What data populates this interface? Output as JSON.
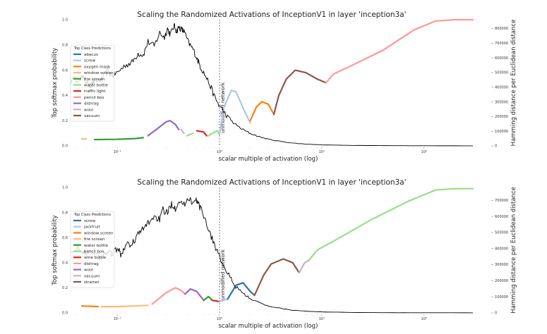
{
  "chart_data": [
    {
      "type": "line",
      "title": "Scaling the Randomized Activations of InceptionV1 in layer 'inception3a'",
      "xlabel": "scalar multiple of activation (log)",
      "ylabel": "Top softmax probability",
      "y2label": "Hamming distance per Euclidean distance",
      "xscale": "log",
      "xlim": [
        0.035,
        300
      ],
      "ylim": [
        0,
        1.0
      ],
      "y2lim": [
        0,
        860000
      ],
      "xticks": [
        {
          "v": 0.1,
          "label": "10⁻¹"
        },
        {
          "v": 1,
          "label": "10⁰"
        },
        {
          "v": 10,
          "label": "10¹"
        },
        {
          "v": 100,
          "label": "10²"
        }
      ],
      "yticks": [
        {
          "v": 0,
          "label": "0.0"
        },
        {
          "v": 0.2,
          "label": "0.2"
        },
        {
          "v": 0.4,
          "label": "0.4"
        },
        {
          "v": 0.6,
          "label": "0.6"
        },
        {
          "v": 0.8,
          "label": "0.8"
        },
        {
          "v": 1.0,
          "label": "1.0"
        }
      ],
      "y2ticks": [
        {
          "v": 0,
          "label": "0"
        },
        {
          "v": 100000,
          "label": "100000"
        },
        {
          "v": 200000,
          "label": "200000"
        },
        {
          "v": 300000,
          "label": "300000"
        },
        {
          "v": 400000,
          "label": "400000"
        },
        {
          "v": 500000,
          "label": "500000"
        },
        {
          "v": 600000,
          "label": "600000"
        },
        {
          "v": 700000,
          "label": "700000"
        },
        {
          "v": 800000,
          "label": "800000"
        }
      ],
      "vline": {
        "x": 1.0,
        "label": "unmodified network"
      },
      "legend": {
        "title": "Top Class Predictions",
        "placement": "left"
      },
      "classes": [
        {
          "name": "abacus",
          "color": "#1f77b4"
        },
        {
          "name": "screw",
          "color": "#aec7e8"
        },
        {
          "name": "oxygen mask",
          "color": "#ff7f0e"
        },
        {
          "name": "window screen",
          "color": "#ffbb78"
        },
        {
          "name": "fire screen",
          "color": "#2ca02c"
        },
        {
          "name": "water bottle",
          "color": "#98df8a"
        },
        {
          "name": "traffic light",
          "color": "#d62728"
        },
        {
          "name": "pencil box",
          "color": "#ff9896"
        },
        {
          "name": "dishrag",
          "color": "#9467bd"
        },
        {
          "name": "wool",
          "color": "#c5b0d5"
        },
        {
          "name": "vacuum",
          "color": "#8c564b"
        }
      ],
      "softmax_segments": [
        {
          "cls": 3,
          "points": [
            [
              0.045,
              0.055
            ],
            [
              0.05,
              0.054
            ]
          ]
        },
        {
          "cls": 4,
          "points": [
            [
              0.06,
              0.05
            ],
            [
              0.1,
              0.052
            ],
            [
              0.15,
              0.058
            ],
            [
              0.18,
              0.065
            ]
          ]
        },
        {
          "cls": 8,
          "points": [
            [
              0.2,
              0.08
            ],
            [
              0.25,
              0.14
            ],
            [
              0.3,
              0.19
            ],
            [
              0.33,
              0.2
            ],
            [
              0.37,
              0.17
            ],
            [
              0.4,
              0.13
            ]
          ]
        },
        {
          "cls": 9,
          "points": [
            [
              0.42,
              0.13
            ],
            [
              0.45,
              0.1
            ]
          ]
        },
        {
          "cls": 5,
          "points": [
            [
              0.48,
              0.08
            ],
            [
              0.55,
              0.1
            ]
          ]
        },
        {
          "cls": 6,
          "points": [
            [
              0.6,
              0.12
            ],
            [
              0.7,
              0.11
            ],
            [
              0.75,
              0.08
            ]
          ]
        },
        {
          "cls": 5,
          "points": [
            [
              0.78,
              0.08
            ],
            [
              0.85,
              0.1
            ],
            [
              0.95,
              0.12
            ],
            [
              1.0,
              0.09
            ]
          ]
        },
        {
          "cls": 1,
          "points": [
            [
              1.0,
              0.09
            ],
            [
              1.1,
              0.3
            ],
            [
              1.3,
              0.44
            ],
            [
              1.45,
              0.43
            ],
            [
              1.7,
              0.3
            ],
            [
              2.0,
              0.18
            ]
          ]
        },
        {
          "cls": 2,
          "points": [
            [
              2.0,
              0.2
            ],
            [
              2.3,
              0.31
            ],
            [
              2.6,
              0.35
            ],
            [
              3.0,
              0.33
            ],
            [
              3.4,
              0.25
            ]
          ]
        },
        {
          "cls": 10,
          "points": [
            [
              3.4,
              0.25
            ],
            [
              3.8,
              0.4
            ],
            [
              4.5,
              0.53
            ],
            [
              5.5,
              0.6
            ],
            [
              7.0,
              0.58
            ],
            [
              9.0,
              0.53
            ],
            [
              11.0,
              0.5
            ]
          ]
        },
        {
          "cls": 7,
          "points": [
            [
              11.0,
              0.5
            ],
            [
              13.0,
              0.57
            ],
            [
              20.0,
              0.64
            ],
            [
              40.0,
              0.76
            ],
            [
              80.0,
              0.92
            ],
            [
              130.0,
              0.99
            ],
            [
              200.0,
              1.0
            ],
            [
              300.0,
              1.0
            ]
          ]
        }
      ],
      "hamming_points": [
        [
          0.035,
          440000
        ],
        [
          0.045,
          470000
        ],
        [
          0.05,
          435000
        ],
        [
          0.055,
          410000
        ],
        [
          0.06,
          440000
        ],
        [
          0.07,
          450000
        ],
        [
          0.08,
          510000
        ],
        [
          0.09,
          480000
        ],
        [
          0.1,
          500000
        ],
        [
          0.12,
          550000
        ],
        [
          0.14,
          570000
        ],
        [
          0.16,
          630000
        ],
        [
          0.18,
          620000
        ],
        [
          0.2,
          710000
        ],
        [
          0.23,
          680000
        ],
        [
          0.26,
          770000
        ],
        [
          0.29,
          740000
        ],
        [
          0.31,
          800000
        ],
        [
          0.33,
          760000
        ],
        [
          0.36,
          820000
        ],
        [
          0.38,
          780000
        ],
        [
          0.4,
          810000
        ],
        [
          0.43,
          790000
        ],
        [
          0.45,
          780000
        ],
        [
          0.5,
          700000
        ],
        [
          0.55,
          660000
        ],
        [
          0.6,
          600000
        ],
        [
          0.65,
          540000
        ],
        [
          0.7,
          500000
        ],
        [
          0.8,
          420000
        ],
        [
          0.9,
          330000
        ],
        [
          1.0,
          270000
        ],
        [
          1.2,
          200000
        ],
        [
          1.4,
          150000
        ],
        [
          1.7,
          110000
        ],
        [
          2.0,
          85000
        ],
        [
          2.5,
          60000
        ],
        [
          3.0,
          45000
        ],
        [
          4.0,
          30000
        ],
        [
          5.0,
          20000
        ],
        [
          7.0,
          12000
        ],
        [
          10.0,
          7000
        ],
        [
          20.0,
          3000
        ],
        [
          50.0,
          1500
        ],
        [
          100.0,
          800
        ],
        [
          300.0,
          500
        ]
      ]
    },
    {
      "type": "line",
      "title": "Scaling the Randomized Activations of InceptionV1 in layer 'inception3a'",
      "xlabel": "scalar multiple of activation (log)",
      "ylabel": "Top softmax probability",
      "y2label": "Hamming distance per Euclidean distance",
      "xscale": "log",
      "xlim": [
        0.035,
        300
      ],
      "ylim": [
        0,
        1.0
      ],
      "y2lim": [
        0,
        780000
      ],
      "xticks": [
        {
          "v": 0.1,
          "label": "10⁻¹"
        },
        {
          "v": 1,
          "label": "10⁰"
        },
        {
          "v": 10,
          "label": "10¹"
        },
        {
          "v": 100,
          "label": "10²"
        }
      ],
      "yticks": [
        {
          "v": 0,
          "label": "0.0"
        },
        {
          "v": 0.2,
          "label": "0.2"
        },
        {
          "v": 0.4,
          "label": "0.4"
        },
        {
          "v": 0.6,
          "label": "0.6"
        },
        {
          "v": 0.8,
          "label": "0.8"
        },
        {
          "v": 1.0,
          "label": "1.0"
        }
      ],
      "y2ticks": [
        {
          "v": 0,
          "label": "0"
        },
        {
          "v": 100000,
          "label": "100000"
        },
        {
          "v": 200000,
          "label": "200000"
        },
        {
          "v": 300000,
          "label": "300000"
        },
        {
          "v": 400000,
          "label": "400000"
        },
        {
          "v": 500000,
          "label": "500000"
        },
        {
          "v": 600000,
          "label": "600000"
        },
        {
          "v": 700000,
          "label": "700000"
        }
      ],
      "vline": {
        "x": 1.0,
        "label": "unmodified network"
      },
      "legend": {
        "title": "Top Class Predictions",
        "placement": "left"
      },
      "classes": [
        {
          "name": "screw",
          "color": "#1f77b4"
        },
        {
          "name": "jackfruit",
          "color": "#aec7e8"
        },
        {
          "name": "window screen",
          "color": "#ff7f0e"
        },
        {
          "name": "fire screen",
          "color": "#ffbb78"
        },
        {
          "name": "water bottle",
          "color": "#2ca02c"
        },
        {
          "name": "pencil box",
          "color": "#98df8a"
        },
        {
          "name": "wine bottle",
          "color": "#d62728"
        },
        {
          "name": "dishrag",
          "color": "#ff9896"
        },
        {
          "name": "wool",
          "color": "#9467bd"
        },
        {
          "name": "vacuum",
          "color": "#c5b0d5"
        },
        {
          "name": "strainer",
          "color": "#8c564b"
        }
      ],
      "softmax_segments": [
        {
          "cls": 2,
          "points": [
            [
              0.045,
              0.055
            ],
            [
              0.065,
              0.05
            ]
          ]
        },
        {
          "cls": 3,
          "points": [
            [
              0.07,
              0.05
            ],
            [
              0.1,
              0.05
            ],
            [
              0.15,
              0.055
            ],
            [
              0.2,
              0.06
            ]
          ]
        },
        {
          "cls": 7,
          "points": [
            [
              0.22,
              0.07
            ],
            [
              0.3,
              0.16
            ],
            [
              0.37,
              0.2
            ],
            [
              0.42,
              0.18
            ],
            [
              0.46,
              0.15
            ]
          ]
        },
        {
          "cls": 8,
          "points": [
            [
              0.46,
              0.15
            ],
            [
              0.52,
              0.19
            ],
            [
              0.6,
              0.17
            ],
            [
              0.7,
              0.1
            ]
          ]
        },
        {
          "cls": 4,
          "points": [
            [
              0.7,
              0.1
            ],
            [
              0.78,
              0.13
            ],
            [
              0.85,
              0.1
            ]
          ]
        },
        {
          "cls": 6,
          "points": [
            [
              0.85,
              0.1
            ],
            [
              1.0,
              0.09
            ]
          ]
        },
        {
          "cls": 1,
          "points": [
            [
              1.0,
              0.09
            ],
            [
              1.2,
              0.11
            ]
          ]
        },
        {
          "cls": 0,
          "points": [
            [
              1.2,
              0.11
            ],
            [
              1.45,
              0.22
            ],
            [
              1.7,
              0.24
            ],
            [
              2.0,
              0.17
            ],
            [
              2.2,
              0.14
            ]
          ]
        },
        {
          "cls": 10,
          "points": [
            [
              2.2,
              0.14
            ],
            [
              2.7,
              0.3
            ],
            [
              3.2,
              0.39
            ],
            [
              4.2,
              0.43
            ],
            [
              5.2,
              0.4
            ],
            [
              6.0,
              0.32
            ]
          ]
        },
        {
          "cls": 9,
          "points": [
            [
              6.0,
              0.32
            ],
            [
              6.8,
              0.4
            ],
            [
              7.5,
              0.42
            ]
          ]
        },
        {
          "cls": 5,
          "points": [
            [
              7.5,
              0.42
            ],
            [
              9.0,
              0.5
            ],
            [
              15.0,
              0.6
            ],
            [
              30.0,
              0.74
            ],
            [
              70.0,
              0.89
            ],
            [
              130.0,
              0.98
            ],
            [
              200.0,
              0.99
            ],
            [
              300.0,
              0.99
            ]
          ]
        }
      ],
      "hamming_points": [
        [
          0.035,
          400000
        ],
        [
          0.045,
          390000
        ],
        [
          0.055,
          370000
        ],
        [
          0.07,
          350000
        ],
        [
          0.08,
          380000
        ],
        [
          0.09,
          370000
        ],
        [
          0.1,
          400000
        ],
        [
          0.11,
          360000
        ],
        [
          0.12,
          420000
        ],
        [
          0.14,
          430000
        ],
        [
          0.16,
          490000
        ],
        [
          0.18,
          520000
        ],
        [
          0.2,
          560000
        ],
        [
          0.23,
          600000
        ],
        [
          0.26,
          580000
        ],
        [
          0.28,
          640000
        ],
        [
          0.31,
          620000
        ],
        [
          0.34,
          680000
        ],
        [
          0.37,
          650000
        ],
        [
          0.4,
          700000
        ],
        [
          0.45,
          670000
        ],
        [
          0.5,
          720000
        ],
        [
          0.55,
          680000
        ],
        [
          0.6,
          700000
        ],
        [
          0.65,
          650000
        ],
        [
          0.7,
          610000
        ],
        [
          0.8,
          500000
        ],
        [
          0.9,
          420000
        ],
        [
          1.0,
          350000
        ],
        [
          1.2,
          240000
        ],
        [
          1.4,
          170000
        ],
        [
          1.7,
          120000
        ],
        [
          2.0,
          90000
        ],
        [
          2.5,
          60000
        ],
        [
          3.0,
          42000
        ],
        [
          4.0,
          28000
        ],
        [
          5.0,
          18000
        ],
        [
          7.0,
          10000
        ],
        [
          10.0,
          6000
        ],
        [
          20.0,
          2500
        ],
        [
          50.0,
          1200
        ],
        [
          100.0,
          700
        ],
        [
          300.0,
          500
        ]
      ]
    }
  ]
}
